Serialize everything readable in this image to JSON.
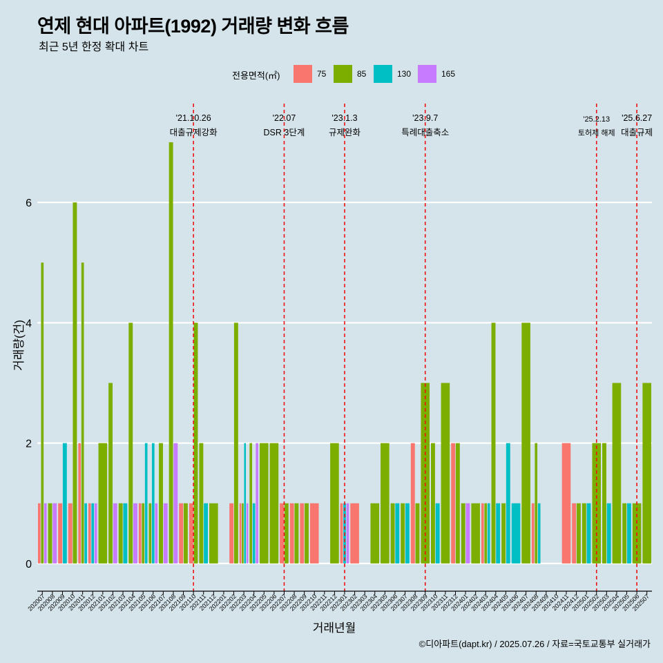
{
  "header": {
    "title": "연제 현대 아파트(1992) 거래량 변화 흐름",
    "subtitle": "최근 5년 한정 확대 차트"
  },
  "legend": {
    "title": "전용면적(㎡)",
    "items": [
      {
        "label": "75",
        "color": "#f8766d"
      },
      {
        "label": "85",
        "color": "#7cae00"
      },
      {
        "label": "130",
        "color": "#00bfc4"
      },
      {
        "label": "165",
        "color": "#c77cff"
      }
    ]
  },
  "caption": "©디아파트(dapt.kr) / 2025.07.26 / 자료=국토교통부 실거래가",
  "chart_data": {
    "type": "bar",
    "xlabel": "거래년월",
    "ylabel": "거래량(건)",
    "ylim": [
      -0.3,
      7.7
    ],
    "yticks": [
      0,
      2,
      4,
      6
    ],
    "grid": true,
    "legend_position": "top",
    "categories": [
      "202007",
      "202008",
      "202009",
      "202010",
      "202011",
      "202012",
      "202101",
      "202102",
      "202103",
      "202104",
      "202105",
      "202106",
      "202107",
      "202108",
      "202109",
      "202110",
      "202111",
      "202112",
      "202201",
      "202202",
      "202203",
      "202204",
      "202205",
      "202206",
      "202207",
      "202208",
      "202209",
      "202210",
      "202211",
      "202212",
      "202301",
      "202302",
      "202303",
      "202304",
      "202305",
      "202306",
      "202307",
      "202308",
      "202309",
      "202310",
      "202311",
      "202312",
      "202401",
      "202402",
      "202403",
      "202404",
      "202405",
      "202406",
      "202407",
      "202408",
      "202409",
      "202410",
      "202411",
      "202412",
      "202501",
      "202502",
      "202503",
      "202504",
      "202505",
      "202506",
      "202507"
    ],
    "series": [
      {
        "name": "75",
        "color": "#f8766d",
        "values": [
          1,
          0,
          1,
          1,
          2,
          1,
          0,
          0,
          0,
          0,
          1,
          0,
          0,
          0,
          1,
          1,
          0,
          0,
          0,
          1,
          1,
          0,
          0,
          0,
          1,
          1,
          1,
          1,
          0,
          0,
          1,
          1,
          0,
          0,
          0,
          0,
          0,
          2,
          0,
          0,
          0,
          2,
          0,
          0,
          1,
          0,
          0,
          0,
          0,
          1,
          0,
          0,
          2,
          1,
          0,
          0,
          0,
          0,
          0,
          0,
          0
        ]
      },
      {
        "name": "85",
        "color": "#7cae00",
        "values": [
          5,
          1,
          0,
          6,
          5,
          0,
          2,
          3,
          1,
          4,
          1,
          1,
          2,
          7,
          1,
          4,
          2,
          1,
          0,
          4,
          1,
          2,
          2,
          2,
          1,
          1,
          1,
          0,
          0,
          2,
          0,
          0,
          0,
          1,
          2,
          1,
          1,
          1,
          3,
          2,
          3,
          2,
          1,
          1,
          1,
          4,
          1,
          0,
          4,
          2,
          0,
          0,
          0,
          1,
          1,
          2,
          2,
          3,
          1,
          1,
          3
        ]
      },
      {
        "name": "130",
        "color": "#00bfc4",
        "values": [
          0,
          0,
          2,
          0,
          1,
          1,
          0,
          0,
          1,
          0,
          2,
          2,
          0,
          0,
          0,
          0,
          1,
          0,
          0,
          0,
          2,
          1,
          0,
          0,
          0,
          0,
          0,
          0,
          0,
          0,
          1,
          0,
          0,
          0,
          0,
          1,
          1,
          0,
          0,
          1,
          0,
          0,
          0,
          0,
          1,
          1,
          2,
          1,
          0,
          1,
          0,
          0,
          0,
          0,
          1,
          0,
          1,
          0,
          1,
          0,
          0
        ]
      },
      {
        "name": "165",
        "color": "#c77cff",
        "values": [
          1,
          1,
          0,
          0,
          0,
          1,
          0,
          1,
          0,
          1,
          0,
          1,
          1,
          2,
          0,
          0,
          0,
          0,
          0,
          0,
          1,
          2,
          0,
          0,
          0,
          0,
          0,
          0,
          0,
          0,
          1,
          0,
          0,
          0,
          0,
          0,
          0,
          0,
          0,
          0,
          0,
          0,
          1,
          0,
          0,
          0,
          0,
          0,
          0,
          0,
          0,
          0,
          0,
          0,
          0,
          0,
          0,
          0,
          0,
          0,
          0
        ]
      }
    ],
    "annotations": [
      {
        "x": "202110",
        "date": "'21.10.26",
        "text": "대출규제강화"
      },
      {
        "x": "202207",
        "date": "'22.07",
        "text": "DSR 3단계"
      },
      {
        "x": "202301",
        "date": "'23.1.3",
        "text": "규제완화"
      },
      {
        "x": "202309",
        "date": "'23.9.7",
        "text": "특례대출축소"
      },
      {
        "x": "202502",
        "date": "'25.2.13",
        "text": "토허제 해제"
      },
      {
        "x": "202506",
        "date": "'25.6.27",
        "text": "대출규제"
      }
    ]
  }
}
